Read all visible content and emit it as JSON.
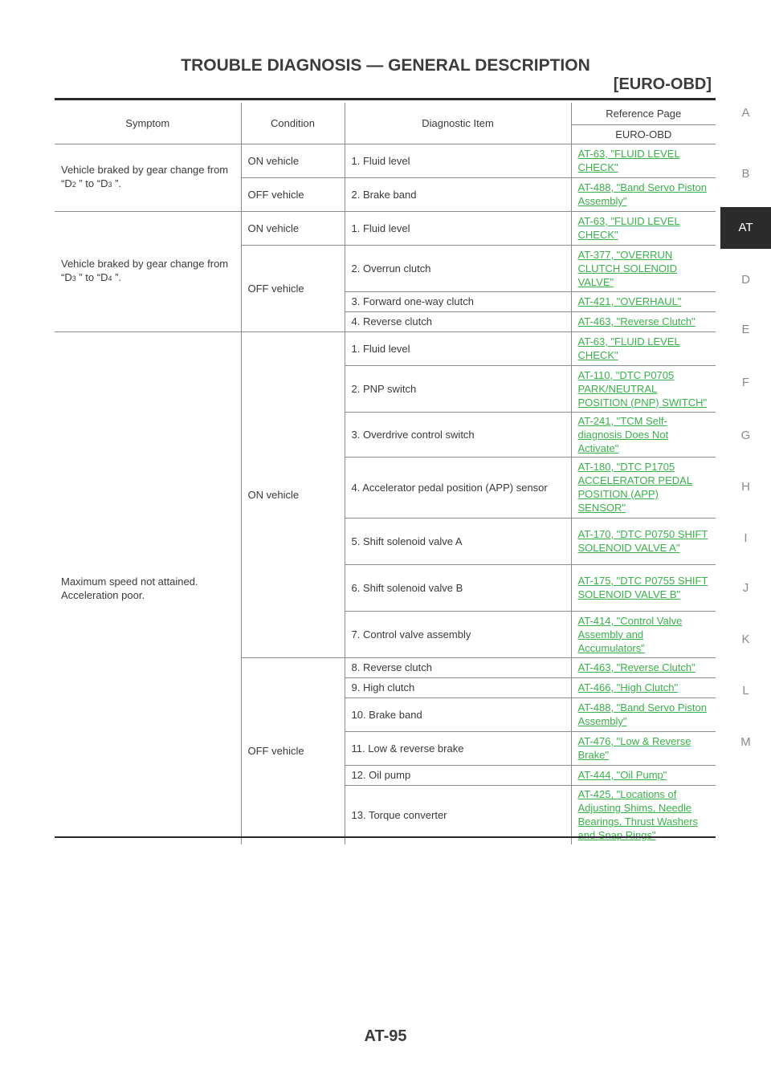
{
  "header": {
    "title": "TROUBLE DIAGNOSIS — GENERAL DESCRIPTION",
    "subtitle": "[EURO-OBD]"
  },
  "side_tabs": [
    "A",
    "B",
    "AT",
    "D",
    "E",
    "F",
    "G",
    "H",
    "I",
    "J",
    "K",
    "L",
    "M"
  ],
  "active_tab": "AT",
  "table": {
    "headers": {
      "symptom": "Symptom",
      "condition": "Condition",
      "diagnostic_item": "Diagnostic Item",
      "reference_page": "Reference Page",
      "euro_obd": "EURO-OBD"
    },
    "group1": {
      "symptom_a": "Vehicle braked by gear change from",
      "symptom_b1": "“D",
      "sub_a": "2",
      "symptom_b2": " ” to “D",
      "sub_b": "3",
      "symptom_b3": " ”.",
      "rows": [
        {
          "condition": "ON vehicle",
          "item": "1. Fluid level",
          "ref": "AT-63, \"FLUID LEVEL CHECK\""
        },
        {
          "condition": "OFF vehicle",
          "item": "2. Brake band",
          "ref": "AT-488, \"Band Servo Piston Assembly\""
        }
      ]
    },
    "group2": {
      "symptom_a": "Vehicle braked by gear change from",
      "symptom_b1": "“D",
      "sub_a": "3",
      "symptom_b2": " ” to “D",
      "sub_b": "4",
      "symptom_b3": " ”.",
      "on_condition": "ON vehicle",
      "off_condition": "OFF vehicle",
      "rows": [
        {
          "item": "1. Fluid level",
          "ref": "AT-63, \"FLUID LEVEL CHECK\""
        },
        {
          "item": "2. Overrun clutch",
          "ref": "AT-377, \"OVERRUN CLUTCH SOLENOID VALVE\""
        },
        {
          "item": "3. Forward one-way clutch",
          "ref": "AT-421, \"OVERHAUL\""
        },
        {
          "item": "4. Reverse clutch",
          "ref": "AT-463, \"Reverse Clutch\""
        }
      ]
    },
    "group3": {
      "symptom_a": "Maximum speed not attained.",
      "symptom_b": "Acceleration poor.",
      "on_condition": "ON vehicle",
      "off_condition": "OFF vehicle",
      "rows": [
        {
          "item": "1. Fluid level",
          "ref": "AT-63, \"FLUID LEVEL CHECK\""
        },
        {
          "item": "2. PNP switch",
          "ref": "AT-110, \"DTC P0705 PARK/NEUTRAL POSITION (PNP) SWITCH\""
        },
        {
          "item": "3. Overdrive control switch",
          "ref": "AT-241, \"TCM Self-diagnosis Does Not Activate\""
        },
        {
          "item": "4. Accelerator pedal position (APP) sensor",
          "ref": "AT-180, \"DTC P1705 ACCELERATOR PEDAL POSITION (APP) SENSOR\""
        },
        {
          "item": "5. Shift solenoid valve A",
          "ref": "AT-170, \"DTC P0750 SHIFT SOLENOID VALVE A\""
        },
        {
          "item": "6. Shift solenoid valve B",
          "ref": "AT-175, \"DTC P0755 SHIFT SOLENOID VALVE B\""
        },
        {
          "item": "7. Control valve assembly",
          "ref": "AT-414, \"Control Valve Assembly and Accumulators\""
        },
        {
          "item": "8. Reverse clutch",
          "ref": "AT-463, \"Reverse Clutch\""
        },
        {
          "item": "9. High clutch",
          "ref": "AT-466, \"High Clutch\""
        },
        {
          "item": "10. Brake band",
          "ref": "AT-488, \"Band Servo Piston Assembly\""
        },
        {
          "item": "11. Low & reverse brake",
          "ref": "AT-476, \"Low & Reverse Brake\""
        },
        {
          "item": "12. Oil pump",
          "ref": "AT-444, \"Oil Pump\""
        },
        {
          "item": "13. Torque converter",
          "ref": "AT-425, \"Locations of Adjusting Shims, Needle Bearings, Thrust Washers and Snap Rings\""
        }
      ]
    }
  },
  "footer": {
    "page_number": "AT-95"
  }
}
